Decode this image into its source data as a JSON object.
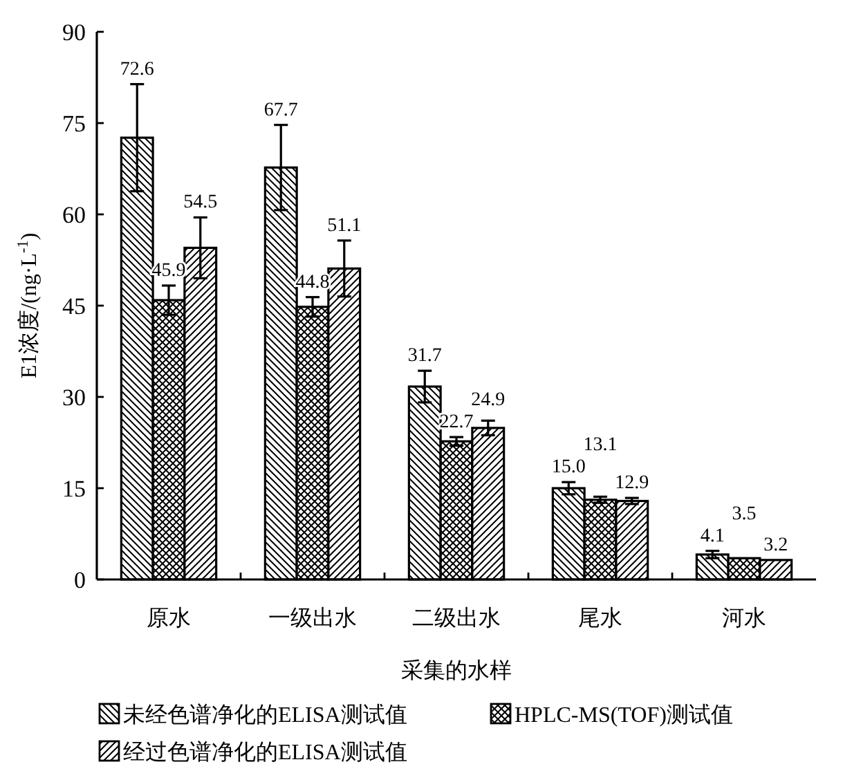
{
  "chart_data": {
    "type": "bar",
    "categories": [
      "原水",
      "一级出水",
      "二级出水",
      "尾水",
      "河水"
    ],
    "xlabel": "采集的水样",
    "ylabel": "E1浓度/(ng·L$^{-1}$)",
    "ylim": [
      0,
      90
    ],
    "yticks": [
      0,
      15,
      30,
      45,
      60,
      75,
      90
    ],
    "legend": "bottom",
    "grid": false,
    "series": [
      {
        "name": "未经色谱净化的ELISA测试值",
        "color": "#000000",
        "values": [
          72.6,
          67.7,
          31.7,
          15.0,
          4.1
        ],
        "value_labels": [
          "72.6",
          "67.7",
          "31.7",
          "15.0",
          "4.1"
        ],
        "errors": [
          8.8,
          7.0,
          2.6,
          1.0,
          0.6
        ]
      },
      {
        "name": "HPLC-MS(TOF)测试值",
        "color": "#000000",
        "values": [
          45.9,
          44.8,
          22.7,
          13.1,
          3.5
        ],
        "value_labels": [
          "45.9",
          "44.8",
          "22.7",
          "13.1",
          "3.5"
        ],
        "errors": [
          2.4,
          1.6,
          0.7,
          0.5,
          null
        ]
      },
      {
        "name": "经过色谱净化的ELISA测试值",
        "color": "#000000",
        "values": [
          54.5,
          51.1,
          24.9,
          12.9,
          3.2
        ],
        "value_labels": [
          "54.5",
          "51.1",
          "24.9",
          "12.9",
          "3.2"
        ],
        "errors": [
          5.0,
          4.6,
          1.2,
          0.5,
          null
        ]
      }
    ]
  }
}
